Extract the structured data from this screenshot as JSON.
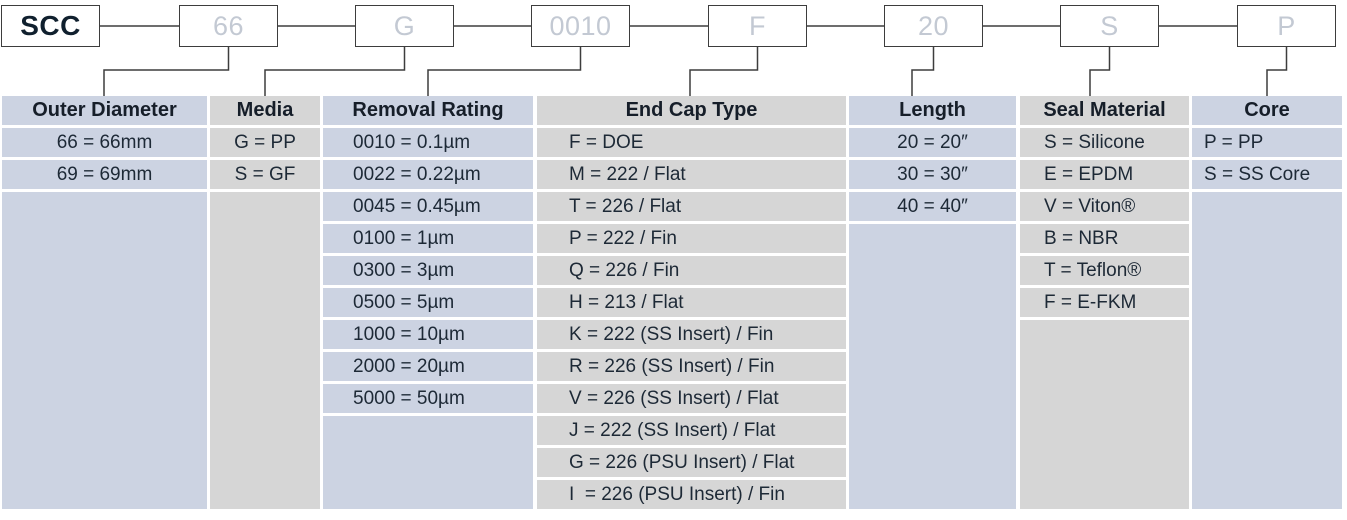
{
  "part_code": {
    "prefix": "SCC",
    "segments": [
      "66",
      "G",
      "0010",
      "F",
      "20",
      "S",
      "P"
    ]
  },
  "table": {
    "columns": [
      {
        "header": "Outer Diameter",
        "tone": "blue",
        "options": [
          "66 = 66mm",
          "69 = 69mm"
        ]
      },
      {
        "header": "Media",
        "tone": "gray",
        "options": [
          "G = PP",
          "S = GF"
        ]
      },
      {
        "header": "Removal Rating",
        "tone": "blue",
        "options": [
          "0010 = 0.1µm",
          "0022 = 0.22µm",
          "0045 = 0.45µm",
          "0100 = 1µm",
          "0300 = 3µm",
          "0500 = 5µm",
          "1000 = 10µm",
          "2000 = 20µm",
          "5000 = 50µm"
        ]
      },
      {
        "header": "End Cap Type",
        "tone": "gray",
        "options": [
          "F = DOE",
          "M = 222 / Flat",
          "T = 226 / Flat",
          "P = 222 / Fin",
          "Q = 226 / Fin",
          "H = 213 / Flat",
          "K = 222 (SS Insert) / Fin",
          "R = 226 (SS Insert) / Fin",
          "V = 226 (SS Insert) / Flat",
          "J = 222 (SS Insert) / Flat",
          "G = 226 (PSU Insert) / Flat",
          "I  = 226 (PSU Insert) / Fin"
        ]
      },
      {
        "header": "Length",
        "tone": "blue",
        "options": [
          "20 = 20″",
          "30 = 30″",
          "40 = 40″"
        ]
      },
      {
        "header": "Seal Material",
        "tone": "gray",
        "options": [
          "S = Silicone",
          "E = EPDM",
          "V = Viton®",
          "B = NBR",
          "T = Teflon®",
          "F = E-FKM"
        ]
      },
      {
        "header": "Core",
        "tone": "blue",
        "options": [
          "P = PP",
          "S = SS Core"
        ]
      }
    ]
  },
  "colors": {
    "blue": "#ccd3e2",
    "gray": "#d6d6d6",
    "cell_text": "#1d2936",
    "header_text": "#161e29",
    "code_text": "#c3c9d3",
    "prefix_text": "#10202e",
    "line": "#3d3d3d"
  }
}
